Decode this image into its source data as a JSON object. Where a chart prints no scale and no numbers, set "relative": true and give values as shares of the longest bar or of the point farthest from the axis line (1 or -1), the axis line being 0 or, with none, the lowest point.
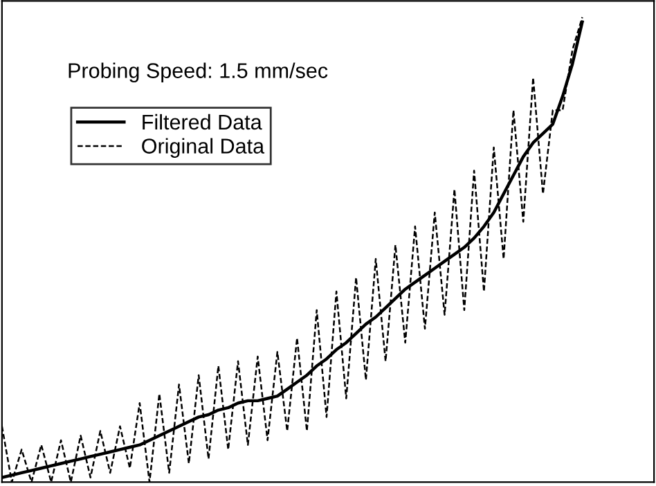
{
  "chart_data": {
    "type": "line",
    "relative": true,
    "legend": "top left",
    "grid": false,
    "marker": "none",
    "annotations": [
      "Probing Speed: 1.5 mm/sec"
    ],
    "categories": [
      null,
      null,
      null,
      null,
      null,
      null,
      null,
      null,
      null,
      null,
      null,
      null,
      null,
      null,
      null,
      null,
      null,
      null,
      null,
      null,
      null,
      null,
      null,
      null,
      null,
      null,
      null,
      null,
      null,
      null,
      null,
      null,
      null,
      null,
      null,
      null,
      null,
      null,
      null,
      null,
      null,
      null,
      null,
      null,
      null,
      null,
      null,
      null,
      null,
      null,
      null,
      null,
      null,
      null,
      null,
      null,
      null,
      null,
      null,
      null
    ],
    "series": [
      {
        "name": "Filtered Data",
        "color": "#000000",
        "line_style": "solid",
        "values": [
          0.01,
          0.015,
          0.02,
          0.025,
          0.03,
          0.035,
          0.04,
          0.045,
          0.05,
          0.055,
          0.06,
          0.065,
          0.07,
          0.075,
          0.08,
          0.09,
          0.1,
          0.11,
          0.12,
          0.13,
          0.14,
          0.145,
          0.155,
          0.16,
          0.17,
          0.175,
          0.175,
          0.18,
          0.185,
          0.2,
          0.215,
          0.23,
          0.25,
          0.265,
          0.285,
          0.3,
          0.32,
          0.34,
          0.355,
          0.375,
          0.395,
          0.415,
          0.43,
          0.445,
          0.46,
          0.475,
          0.49,
          0.505,
          0.525,
          0.55,
          0.58,
          0.62,
          0.66,
          0.7,
          0.73,
          0.75,
          0.77,
          0.83,
          0.9,
          0.99
        ]
      },
      {
        "name": "Original Data",
        "color": "#000000",
        "line_style": "dashed",
        "values": [
          0.12,
          0.0,
          0.07,
          0.0,
          0.08,
          0.0,
          0.09,
          0.0,
          0.1,
          0.01,
          0.11,
          0.02,
          0.12,
          0.03,
          0.17,
          0.0,
          0.19,
          0.02,
          0.21,
          0.04,
          0.23,
          0.05,
          0.25,
          0.07,
          0.26,
          0.08,
          0.27,
          0.09,
          0.28,
          0.11,
          0.31,
          0.11,
          0.37,
          0.14,
          0.41,
          0.18,
          0.44,
          0.22,
          0.48,
          0.26,
          0.51,
          0.3,
          0.55,
          0.33,
          0.58,
          0.36,
          0.63,
          0.37,
          0.67,
          0.41,
          0.72,
          0.48,
          0.8,
          0.56,
          0.87,
          0.62,
          0.8,
          0.8,
          0.93,
          1.0
        ]
      }
    ]
  }
}
